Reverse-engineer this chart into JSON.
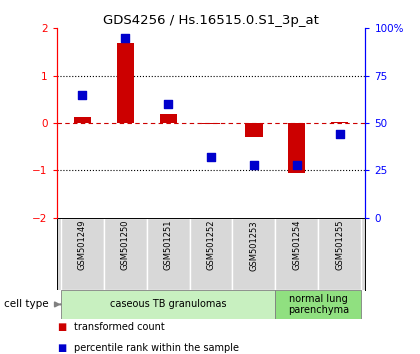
{
  "title": "GDS4256 / Hs.16515.0.S1_3p_at",
  "samples": [
    "GSM501249",
    "GSM501250",
    "GSM501251",
    "GSM501252",
    "GSM501253",
    "GSM501254",
    "GSM501255"
  ],
  "red_bars": [
    0.12,
    1.7,
    0.2,
    -0.02,
    -0.3,
    -1.05,
    0.03
  ],
  "blue_squares_pct": [
    65,
    95,
    60,
    32,
    28,
    28,
    44
  ],
  "ylim_left": [
    -2,
    2
  ],
  "ylim_right": [
    0,
    100
  ],
  "yticks_left": [
    -2,
    -1,
    0,
    1,
    2
  ],
  "yticks_right": [
    0,
    25,
    50,
    75,
    100
  ],
  "ytick_labels_right": [
    "0",
    "25",
    "50",
    "75",
    "100%"
  ],
  "cell_groups": [
    {
      "label": "caseous TB granulomas",
      "samples": [
        0,
        1,
        2,
        3,
        4
      ],
      "color": "#c8f0c0"
    },
    {
      "label": "normal lung\nparenchyma",
      "samples": [
        5,
        6
      ],
      "color": "#90e080"
    }
  ],
  "legend_items": [
    {
      "color": "#cc0000",
      "label": "transformed count"
    },
    {
      "color": "#0000cc",
      "label": "percentile rank within the sample"
    }
  ],
  "bar_color": "#cc0000",
  "square_color": "#0000cc",
  "dashed_zero_color": "#cc0000",
  "dotted_line_color": "#000000",
  "bg_color": "#ffffff",
  "sample_box_color": "#d8d8d8",
  "cell_type_label": "cell type",
  "bar_width": 0.4,
  "square_size": 30
}
